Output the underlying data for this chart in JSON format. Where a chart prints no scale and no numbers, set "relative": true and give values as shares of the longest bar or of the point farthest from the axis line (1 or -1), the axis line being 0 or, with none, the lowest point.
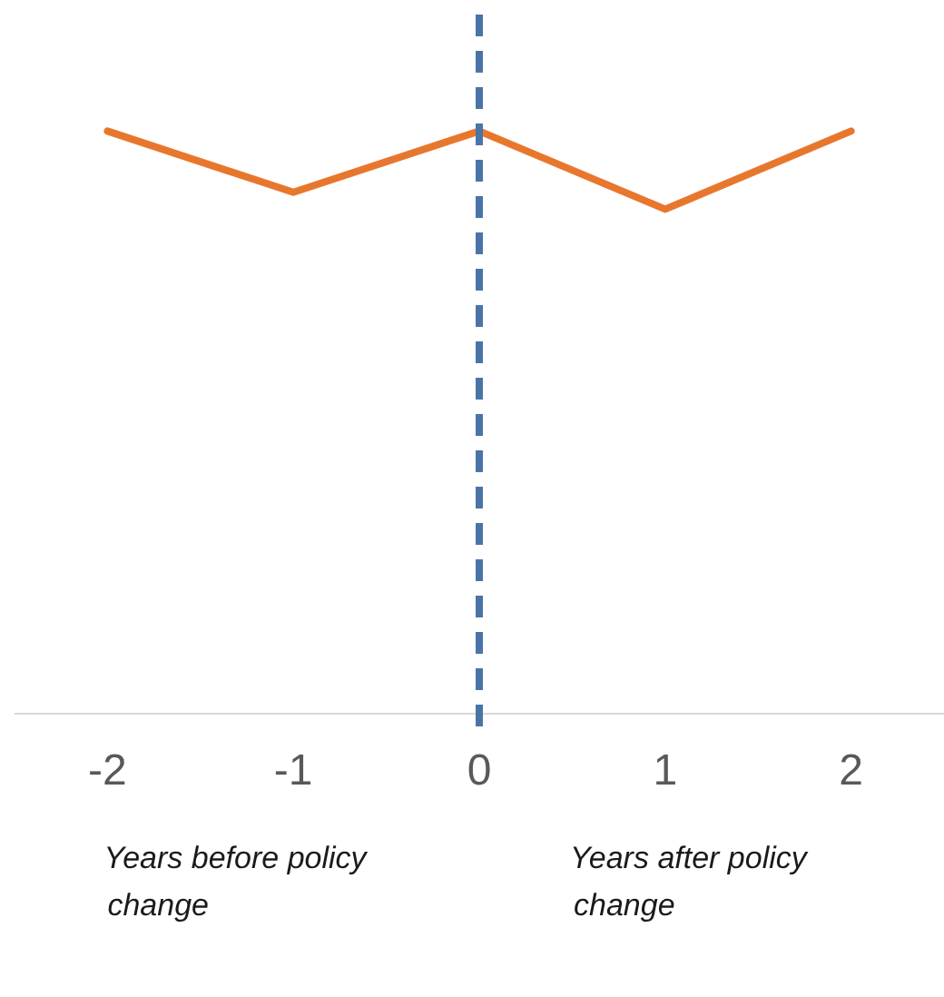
{
  "chart_data": {
    "type": "line",
    "relative": true,
    "categories": [
      "-2",
      "-1",
      "0",
      "1",
      "2"
    ],
    "series": [
      {
        "color": "#e8772e",
        "values": [
          1,
          0.895,
          1,
          0.866,
          1
        ]
      }
    ],
    "ref_lines": [
      {
        "axis": "x",
        "value": "0",
        "color": "#4a74a8",
        "line_style": "dashed"
      }
    ],
    "annotations": [
      "Years before policy change",
      "Years after policy change"
    ],
    "marker": "none",
    "line_style": "solid",
    "grid": false,
    "legend": false
  }
}
